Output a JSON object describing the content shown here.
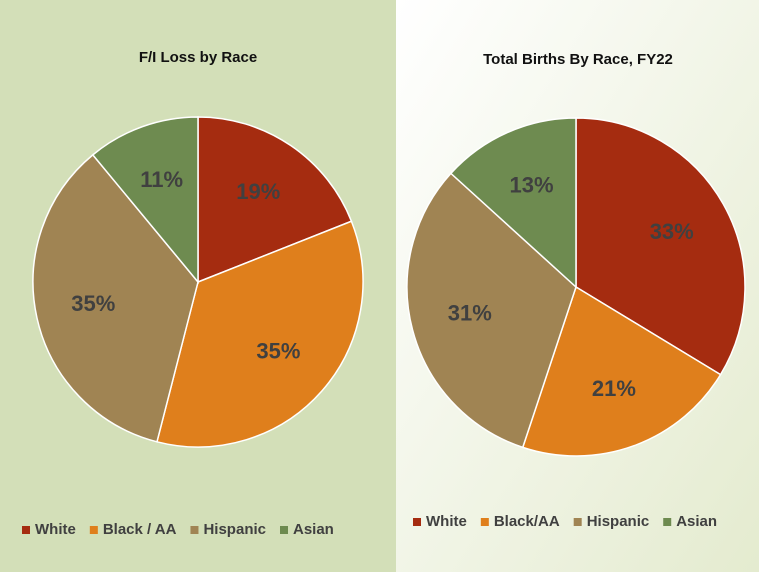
{
  "chart_data": [
    {
      "type": "pie",
      "title": "F/I Loss by Race",
      "categories": [
        "White",
        "Black / AA",
        "Hispanic",
        "Asian"
      ],
      "values": [
        19,
        35,
        35,
        11
      ],
      "value_labels": [
        "19%",
        "35%",
        "35%",
        "11%"
      ],
      "colors": [
        "#a52c10",
        "#df7f1c",
        "#a08453",
        "#6e8b50"
      ],
      "legend": "bottom"
    },
    {
      "type": "pie",
      "title": "Total Births By Race, FY22",
      "categories": [
        "White",
        "Black/AA",
        "Hispanic",
        "Asian"
      ],
      "values": [
        33,
        21,
        31,
        13
      ],
      "value_labels": [
        "33%",
        "21%",
        "31%",
        "13%"
      ],
      "colors": [
        "#a52c10",
        "#df7f1c",
        "#a08453",
        "#6e8b50"
      ],
      "legend": "bottom"
    }
  ]
}
